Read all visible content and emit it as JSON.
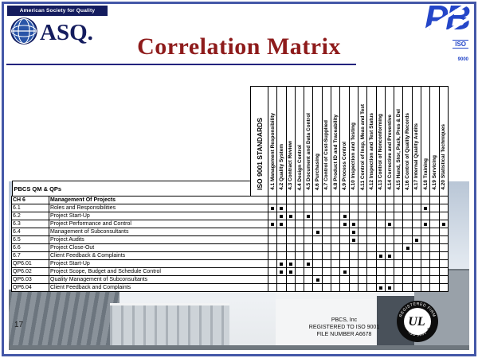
{
  "colors": {
    "title_red": "#8e1b1b",
    "navy": "#141c5e",
    "pb_blue": "#2446c8",
    "frame_blue": "#4457a8",
    "mark_black": "#000000"
  },
  "slide": {
    "title": "Correlation Matrix",
    "number": "17"
  },
  "asq_logo": {
    "banner": "American Society for Quality",
    "acronym": "ASQ."
  },
  "pb_logo": {
    "letters": "PB",
    "iso": "ISO",
    "iso_num": "9000"
  },
  "ul_logo": {
    "letters": "UL",
    "registered_mark": "®",
    "ring_top": "REGISTERED FIRM",
    "ring_bottom": "ISO 9001"
  },
  "footer": {
    "line1": "PBCS, Inc",
    "line2": "REGISTERED TO ISO 9001",
    "line3": "FILE NUMBER A6678"
  },
  "matrix": {
    "corner_label": "PBCS QM & QPs",
    "column_group_label": "ISO 9001 STANDARDS",
    "columns": [
      "4.1 Management Responsibility",
      "4.2 Quality System",
      "4.3 Contract Review",
      "4.4 Design Control",
      "4.5 Document and Data Control",
      "4.6 Purchasing",
      "4.7 Control of Cust-Supplied",
      "4.8 Product ID and Traceability",
      "4.9 Process Control",
      "4.10 Inspection and Testing",
      "4.11 Control of Insp, Meas and Test",
      "4.12 Inspection and Test Status",
      "4.13 Control of Nonconforming",
      "4.14 Corrective and Preventive",
      "4.15 Hand, Stor, Pack, Pres & Del",
      "4.16 Control of Quality Records",
      "4.17 Internal Quality Audits",
      "4.18 Training",
      "4.19 Servicing",
      "4.20 Statistical Techniques"
    ],
    "rows": [
      {
        "id": "CH 6",
        "label": "Management Of Projects",
        "bold": true,
        "marks": []
      },
      {
        "id": "6.1",
        "label": "Roles and Responsibilities",
        "bold": false,
        "marks": [
          0,
          1,
          17
        ]
      },
      {
        "id": "6.2",
        "label": "Project Start-Up",
        "bold": false,
        "marks": [
          1,
          2,
          4,
          8
        ]
      },
      {
        "id": "6.3",
        "label": "Project Performance and Control",
        "bold": false,
        "marks": [
          0,
          1,
          8,
          9,
          13,
          17,
          19
        ]
      },
      {
        "id": "6.4",
        "label": "Management of Subconsultants",
        "bold": false,
        "marks": [
          5,
          9
        ]
      },
      {
        "id": "6.5",
        "label": "Project Audits",
        "bold": false,
        "marks": [
          9,
          16
        ]
      },
      {
        "id": "6.6",
        "label": "Project Close-Out",
        "bold": false,
        "marks": [
          15
        ]
      },
      {
        "id": "6.7",
        "label": "Client Feedback & Complaints",
        "bold": false,
        "marks": [
          12,
          13
        ]
      },
      {
        "id": "QP6.01",
        "label": "Project Start-Up",
        "bold": false,
        "marks": [
          1,
          2,
          4
        ]
      },
      {
        "id": "QP6.02",
        "label": "Project Scope, Budget and Schedule Control",
        "bold": false,
        "marks": [
          1,
          2,
          8
        ]
      },
      {
        "id": "QP6.03",
        "label": "Quality Management of Subconsultants",
        "bold": false,
        "marks": [
          5
        ]
      },
      {
        "id": "QP6.04",
        "label": "Client Feedback and Complaints",
        "bold": false,
        "marks": [
          12,
          13
        ]
      }
    ]
  }
}
